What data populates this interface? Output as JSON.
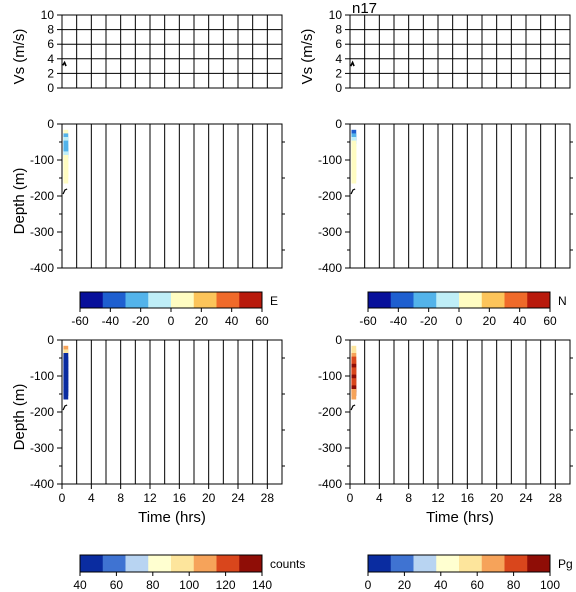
{
  "chart_data": [
    {
      "id": "vs-left",
      "type": "line",
      "ylabel": "Vs (m/s)",
      "ylim": [
        0,
        10
      ],
      "yticks": [
        "0",
        "2",
        "4",
        "6",
        "8",
        "10"
      ],
      "xlim": [
        0,
        30
      ],
      "grid": true,
      "series": [
        {
          "x": [
            0.1,
            0.35,
            0.55
          ],
          "y": [
            3.1,
            3.5,
            3.0
          ]
        }
      ]
    },
    {
      "id": "vs-right",
      "type": "line",
      "title": "n17",
      "ylabel": "Vs (m/s)",
      "ylim": [
        0,
        10
      ],
      "yticks": [
        "0",
        "2",
        "4",
        "6",
        "8",
        "10"
      ],
      "xlim": [
        0,
        30
      ],
      "grid": true,
      "series": [
        {
          "x": [
            0.1,
            0.35,
            0.55
          ],
          "y": [
            3.0,
            3.5,
            3.0
          ]
        }
      ]
    },
    {
      "id": "e-depth",
      "type": "heatmap",
      "ylabel": "Depth (m)",
      "ylim": [
        -400,
        0
      ],
      "yticks": [
        "0",
        "-100",
        "-200",
        "-300",
        "-400"
      ],
      "xlim": [
        0,
        30
      ],
      "colorbar": {
        "label": "E",
        "range": [
          -60,
          60
        ],
        "ticks": [
          "-60",
          "-40",
          "-20",
          "0",
          "20",
          "40",
          "60"
        ],
        "palette": "jet"
      },
      "depth_samples": [
        {
          "depth": -30,
          "value": 0
        },
        {
          "depth": -40,
          "value": -25
        },
        {
          "depth": -50,
          "value": -15
        },
        {
          "depth": -60,
          "value": -30
        },
        {
          "depth": -70,
          "value": -20
        },
        {
          "depth": -80,
          "value": -25
        },
        {
          "depth": -90,
          "value": -15
        },
        {
          "depth": -100,
          "value": 5
        },
        {
          "depth": -110,
          "value": 10
        },
        {
          "depth": -120,
          "value": 5
        },
        {
          "depth": -130,
          "value": 8
        },
        {
          "depth": -140,
          "value": 12
        },
        {
          "depth": -150,
          "value": 5
        }
      ]
    },
    {
      "id": "n-depth",
      "type": "heatmap",
      "ylabel": "",
      "ylim": [
        -400,
        0
      ],
      "yticks": [
        "0",
        "-100",
        "-200",
        "-300",
        "-400"
      ],
      "xlim": [
        0,
        30
      ],
      "colorbar": {
        "label": "N",
        "range": [
          -60,
          60
        ],
        "ticks": [
          "-60",
          "-40",
          "-20",
          "0",
          "20",
          "40",
          "60"
        ],
        "palette": "jet"
      },
      "depth_samples": [
        {
          "depth": -30,
          "value": -35
        },
        {
          "depth": -40,
          "value": -25
        },
        {
          "depth": -50,
          "value": -5
        },
        {
          "depth": -60,
          "value": 0
        },
        {
          "depth": -70,
          "value": 5
        },
        {
          "depth": -80,
          "value": 8
        },
        {
          "depth": -90,
          "value": 5
        },
        {
          "depth": -100,
          "value": 10
        },
        {
          "depth": -110,
          "value": 8
        },
        {
          "depth": -120,
          "value": 5
        },
        {
          "depth": -130,
          "value": 10
        },
        {
          "depth": -140,
          "value": 6
        },
        {
          "depth": -150,
          "value": 8
        }
      ]
    },
    {
      "id": "counts-depth",
      "type": "heatmap",
      "ylabel": "Depth (m)",
      "xlabel": "Time (hrs)",
      "ylim": [
        -400,
        0
      ],
      "yticks": [
        "0",
        "-100",
        "-200",
        "-300",
        "-400"
      ],
      "xlim": [
        0,
        30
      ],
      "xticks": [
        "0",
        "4",
        "8",
        "12",
        "16",
        "20",
        "24",
        "28"
      ],
      "colorbar": {
        "label": "counts",
        "range": [
          40,
          140
        ],
        "ticks": [
          "40",
          "60",
          "80",
          "100",
          "120",
          "140"
        ],
        "palette": "cpt"
      },
      "depth_samples": [
        {
          "depth": -30,
          "value": 110
        },
        {
          "depth": -40,
          "value": 100
        },
        {
          "depth": -50,
          "value": 45
        },
        {
          "depth": -60,
          "value": 45
        },
        {
          "depth": -70,
          "value": 48
        },
        {
          "depth": -80,
          "value": 45
        },
        {
          "depth": -90,
          "value": 48
        },
        {
          "depth": -100,
          "value": 45
        },
        {
          "depth": -110,
          "value": 45
        },
        {
          "depth": -120,
          "value": 48
        },
        {
          "depth": -130,
          "value": 45
        },
        {
          "depth": -140,
          "value": 48
        },
        {
          "depth": -150,
          "value": 45
        }
      ]
    },
    {
      "id": "pg-depth",
      "type": "heatmap",
      "ylabel": "",
      "xlabel": "Time (hrs)",
      "ylim": [
        -400,
        0
      ],
      "yticks": [
        "0",
        "-100",
        "-200",
        "-300",
        "-400"
      ],
      "xlim": [
        0,
        30
      ],
      "xticks": [
        "0",
        "4",
        "8",
        "12",
        "16",
        "20",
        "24",
        "28"
      ],
      "colorbar": {
        "label": "Pg",
        "range": [
          0,
          100
        ],
        "ticks": [
          "0",
          "20",
          "40",
          "60",
          "80",
          "100"
        ],
        "palette": "cpt"
      },
      "depth_samples": [
        {
          "depth": -30,
          "value": 60
        },
        {
          "depth": -40,
          "value": 55
        },
        {
          "depth": -50,
          "value": 70
        },
        {
          "depth": -60,
          "value": 80
        },
        {
          "depth": -70,
          "value": 75
        },
        {
          "depth": -80,
          "value": 90
        },
        {
          "depth": -90,
          "value": 80
        },
        {
          "depth": -100,
          "value": 85
        },
        {
          "depth": -110,
          "value": 90
        },
        {
          "depth": -120,
          "value": 80
        },
        {
          "depth": -130,
          "value": 85
        },
        {
          "depth": -140,
          "value": 90
        },
        {
          "depth": -150,
          "value": 70
        }
      ]
    }
  ]
}
